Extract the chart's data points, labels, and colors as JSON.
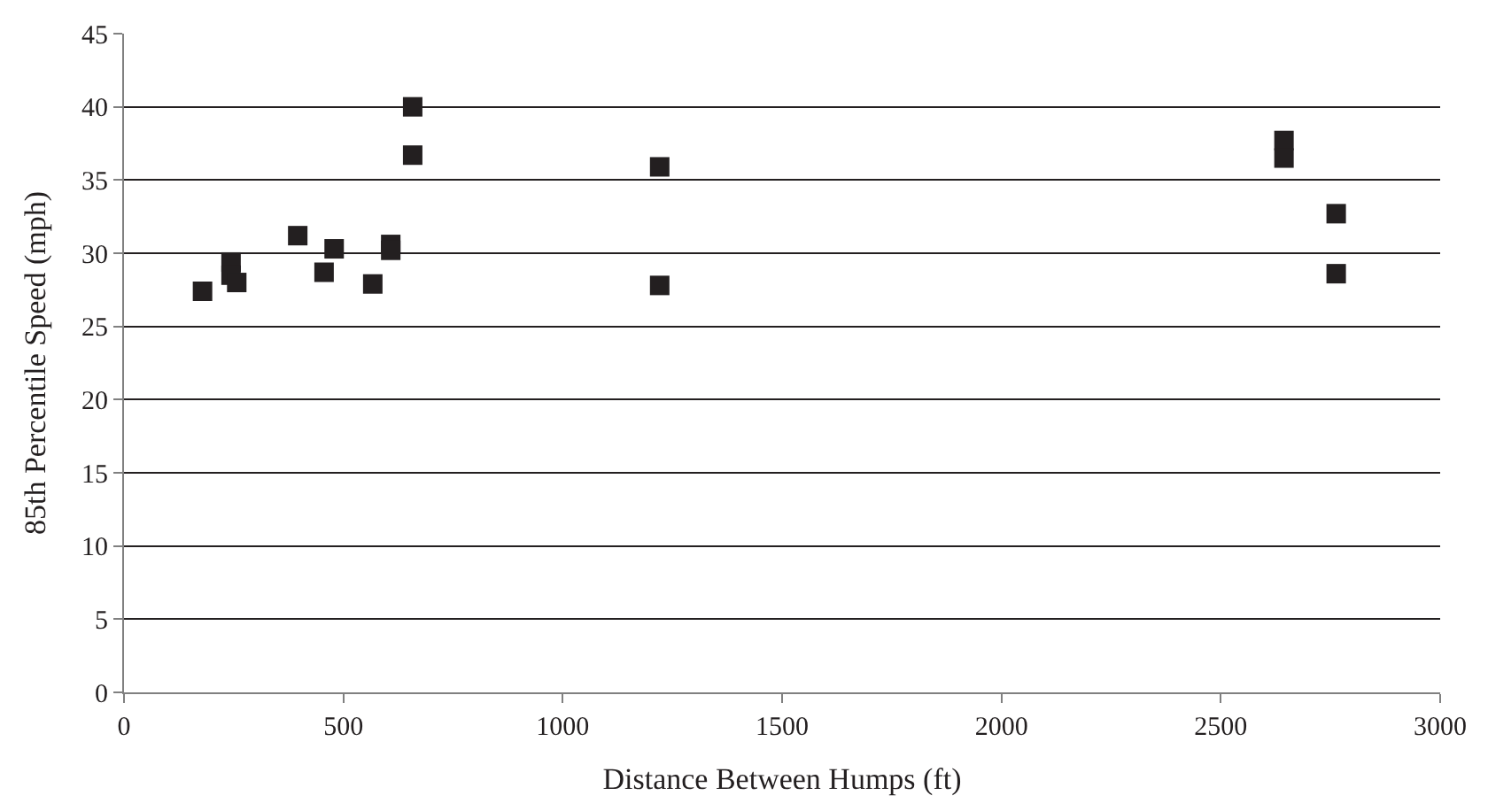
{
  "chart_data": {
    "type": "scatter",
    "xlabel": "Distance Between Humps (ft)",
    "ylabel": "85th Percentile Speed (mph)",
    "x": [
      179,
      244,
      244,
      257,
      396,
      479,
      456,
      567,
      608,
      608,
      658,
      658,
      1221,
      1221,
      2644,
      2644,
      2763,
      2763
    ],
    "values": [
      27.4,
      29.4,
      28.5,
      28.0,
      31.2,
      30.3,
      28.7,
      27.9,
      30.6,
      30.2,
      40.0,
      36.7,
      35.9,
      27.8,
      37.7,
      36.5,
      32.7,
      28.6
    ],
    "color": "#231f20",
    "marker": "square",
    "xlim": [
      0,
      3000
    ],
    "xticks": [
      0,
      500,
      1000,
      1500,
      2000,
      2500,
      3000
    ],
    "ylim": [
      0,
      45
    ],
    "yticks": [
      0,
      5,
      10,
      15,
      20,
      25,
      30,
      35,
      40,
      45
    ],
    "grid": "y",
    "legend": false
  }
}
